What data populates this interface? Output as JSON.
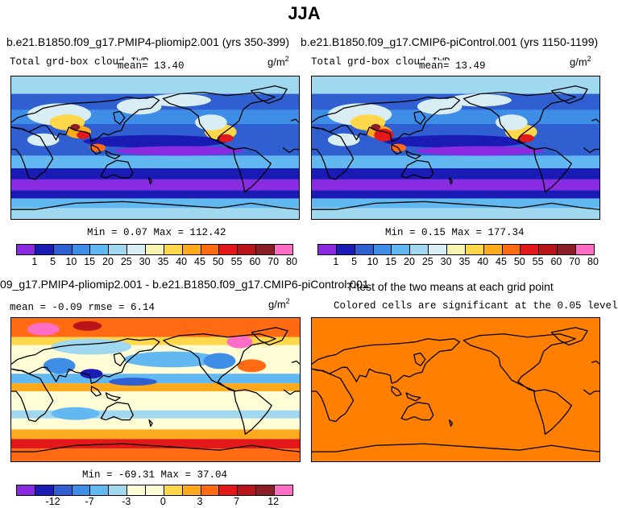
{
  "main_title": "JJA",
  "panels": [
    {
      "title": "b.e21.B1850.f09_g17.PMIP4-pliomip2.001 (yrs 350-399)",
      "var_label": "Total grd-box cloud IWP",
      "mean_text": "mean=  13.40",
      "units": "g/m",
      "units_sup": "2",
      "minmax_text": "Min =   0.07 Max = 112.42",
      "colorbar_labels": [
        "1",
        "5",
        "10",
        "15",
        "20",
        "25",
        "30",
        "35",
        "40",
        "45",
        "50",
        "55",
        "60",
        "70",
        "80"
      ]
    },
    {
      "title": "b.e21.B1850.f09_g17.CMIP6-piControl.001 (yrs 1150-1199)",
      "var_label": "Total grd-box cloud IWP",
      "mean_text": "mean=  13.49",
      "units": "g/m",
      "units_sup": "2",
      "minmax_text": "Min =   0.15 Max = 177.34",
      "colorbar_labels": [
        "1",
        "5",
        "10",
        "15",
        "20",
        "25",
        "30",
        "35",
        "40",
        "45",
        "50",
        "55",
        "60",
        "70",
        "80"
      ]
    },
    {
      "title": "09_g17.PMIP4-pliomip2.001 - b.e21.B1850.f09_g17.CMIP6-piControl.001",
      "stats_text": "mean =  -0.09    rmse =   6.14",
      "units": "g/m",
      "units_sup": "2",
      "minmax_text": "Min = -69.31 Max =  37.04",
      "colorbar_labels": [
        "-12",
        "-7",
        "-3",
        "0",
        "3",
        "7",
        "12"
      ]
    },
    {
      "title": "T-test of the two means at each grid point",
      "subtitle": "Colored cells are significant at the 0.05 level"
    }
  ],
  "colors": {
    "abs_scale": [
      "#8a2be2",
      "#1a1ab5",
      "#2f5fd0",
      "#3e8ee8",
      "#62b8f0",
      "#9fd8ef",
      "#d8eef4",
      "#f7f3b0",
      "#ffd74a",
      "#ffaa1c",
      "#ff6a12",
      "#e3181a",
      "#b8141a",
      "#8c1e28",
      "#ff6ec4"
    ],
    "diff_scale": [
      "#8a2be2",
      "#1a1ab5",
      "#2f5fd0",
      "#3e8ee8",
      "#62b8f0",
      "#9fd8ef",
      "#fffdd6",
      "#fffdd6",
      "#ffd74a",
      "#ffaa1c",
      "#ff6a12",
      "#e3181a",
      "#b8141a",
      "#8c1e28",
      "#ff6ec4"
    ],
    "ttest_fill": "#ff7f00"
  },
  "chart_data": [
    {
      "type": "heatmap",
      "title": "b.e21.B1850.f09_g17.PMIP4-pliomip2.001 (yrs 350-399)",
      "variable": "Total grd-box cloud IWP",
      "units": "g/m2",
      "mean": 13.4,
      "min": 0.07,
      "max": 112.42,
      "contour_levels": [
        1,
        5,
        10,
        15,
        20,
        25,
        30,
        35,
        40,
        45,
        50,
        55,
        60,
        70,
        80
      ]
    },
    {
      "type": "heatmap",
      "title": "b.e21.B1850.f09_g17.CMIP6-piControl.001 (yrs 1150-1199)",
      "variable": "Total grd-box cloud IWP",
      "units": "g/m2",
      "mean": 13.49,
      "min": 0.15,
      "max": 177.34,
      "contour_levels": [
        1,
        5,
        10,
        15,
        20,
        25,
        30,
        35,
        40,
        45,
        50,
        55,
        60,
        70,
        80
      ]
    },
    {
      "type": "heatmap",
      "title": "09_g17.PMIP4-pliomip2.001 - b.e21.B1850.f09_g17.CMIP6-piControl.001",
      "units": "g/m2",
      "mean": -0.09,
      "rmse": 6.14,
      "min": -69.31,
      "max": 37.04,
      "contour_levels": [
        -12,
        -7,
        -3,
        0,
        3,
        7,
        12
      ]
    },
    {
      "type": "heatmap",
      "title": "T-test of the two means at each grid point",
      "subtitle": "Colored cells are significant at the 0.05 level"
    }
  ]
}
